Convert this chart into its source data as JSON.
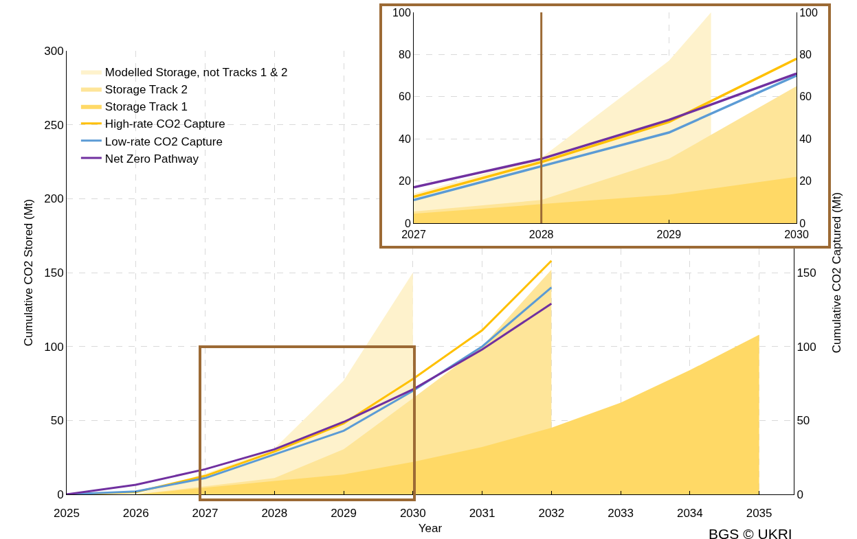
{
  "chart_data": [
    {
      "type": "area",
      "xlabel": "Year",
      "ylabel": "Cumulative CO2 Stored (Mt)",
      "y2label": "Cumulative CO2 Captured (Mt)",
      "x": [
        2025,
        2026,
        2027,
        2028,
        2029,
        2030,
        2031,
        2032,
        2033,
        2034,
        2035
      ],
      "series": [
        {
          "name": "Modelled Storage, not Tracks 1 & 2",
          "type": "area",
          "color": "#fef2cc",
          "values": [
            0,
            0,
            14,
            31,
            77,
            150,
            null,
            null,
            null,
            null,
            null
          ]
        },
        {
          "name": "Storage Track 2",
          "type": "area",
          "color": "#fee599",
          "values": [
            0,
            0,
            5.5,
            11,
            30.5,
            65,
            100,
            152,
            null,
            null,
            null
          ]
        },
        {
          "name": "Storage Track 1",
          "type": "area",
          "color": "#ffd966",
          "values": [
            0,
            0,
            4.5,
            9,
            13.5,
            22,
            32,
            45,
            62,
            84,
            108
          ]
        },
        {
          "name": "High-rate CO2 Capture",
          "type": "line",
          "axis": "y2",
          "color": "#ffc000",
          "values": [
            0,
            1.5,
            12.5,
            29,
            48,
            78,
            111,
            158,
            null,
            null,
            null
          ]
        },
        {
          "name": "Low-rate CO2 Capture",
          "type": "line",
          "axis": "y2",
          "color": "#5b9bd5",
          "values": [
            0,
            2,
            11,
            27,
            43,
            70,
            100,
            140,
            null,
            null,
            null
          ]
        },
        {
          "name": "Net Zero Pathway",
          "type": "line",
          "axis": "y2",
          "color": "#7030a0",
          "values": [
            0,
            6.5,
            17,
            30.5,
            49,
            71,
            98,
            129,
            null,
            null,
            null
          ]
        }
      ],
      "xlim": [
        2025,
        2035.5
      ],
      "xticks": [
        2025,
        2026,
        2027,
        2028,
        2029,
        2030,
        2031,
        2032,
        2033,
        2034,
        2035
      ],
      "ylim": [
        0,
        300
      ],
      "yticks": [
        0,
        50,
        100,
        150,
        200,
        250,
        300
      ],
      "y2lim": [
        0,
        300
      ],
      "y2ticks": [
        0,
        50,
        100,
        150
      ],
      "grid": true,
      "legend": "top left",
      "annotations": [
        "BGS © UKRI"
      ]
    },
    {
      "type": "area",
      "x": [
        2027,
        2028,
        2029,
        2030
      ],
      "series": [
        {
          "type": "area",
          "color": "#fef2cc",
          "x": [
            2027,
            2028,
            2029,
            2029.33
          ],
          "values": [
            14,
            31,
            77,
            100
          ]
        },
        {
          "type": "area",
          "color": "#fee599",
          "values": [
            5.5,
            11,
            30.5,
            65
          ]
        },
        {
          "type": "area",
          "color": "#ffd966",
          "values": [
            4.5,
            9,
            13.5,
            22
          ]
        },
        {
          "type": "line",
          "axis": "y2",
          "color": "#ffc000",
          "values": [
            12.5,
            29,
            48,
            78
          ]
        },
        {
          "type": "line",
          "axis": "y2",
          "color": "#5b9bd5",
          "values": [
            11,
            27,
            43,
            70
          ]
        },
        {
          "type": "line",
          "axis": "y2",
          "color": "#7030a0",
          "values": [
            17,
            30.5,
            49,
            71
          ]
        }
      ],
      "xlim": [
        2027,
        2030
      ],
      "xticks": [
        2027,
        2028,
        2029,
        2030
      ],
      "ylim": [
        0,
        100
      ],
      "yticks": [
        0,
        20,
        40,
        60,
        80,
        100
      ],
      "y2lim": [
        0,
        100
      ],
      "y2ticks": [
        0,
        20,
        40,
        60,
        80,
        100
      ],
      "grid": true,
      "legend": false,
      "ref_lines": [
        {
          "axis": "x",
          "value": 2028,
          "color": "#9c6a35"
        }
      ]
    }
  ]
}
